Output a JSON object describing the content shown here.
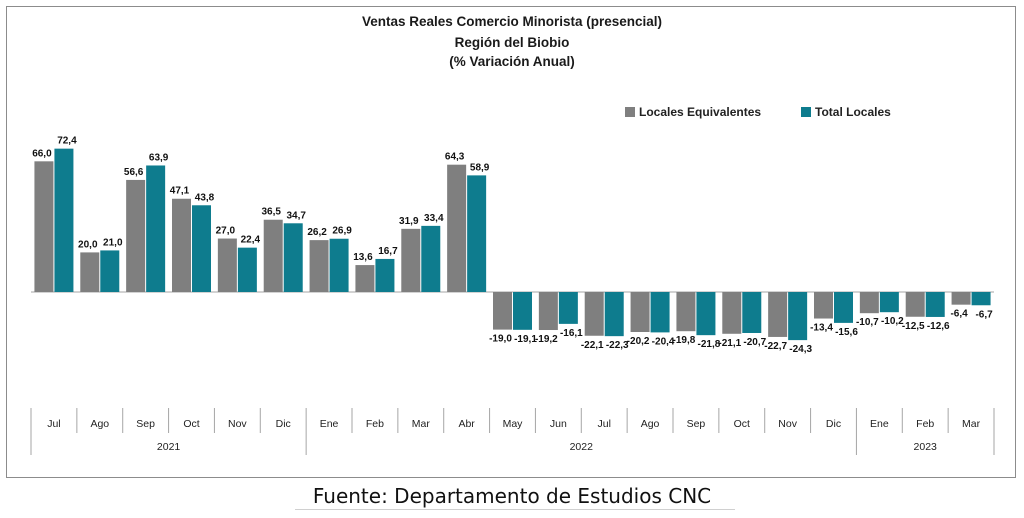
{
  "title_lines": [
    "Ventas Reales Comercio Minorista (presencial)",
    "Región del Biobio",
    "(% Variación Anual)"
  ],
  "source": "Fuente: Departamento de Estudios CNC",
  "colors": {
    "locales_equivalentes": "#7f7f7f",
    "total_locales": "#0e7c8e",
    "axis": "#a6a6a6"
  },
  "chart_data": {
    "type": "bar",
    "title": "Ventas Reales Comercio Minorista (presencial) Región del Biobio (% Variación Anual)",
    "categories": [
      "Jul",
      "Ago",
      "Sep",
      "Oct",
      "Nov",
      "Dic",
      "Ene",
      "Feb",
      "Mar",
      "Abr",
      "May",
      "Jun",
      "Jul",
      "Ago",
      "Sep",
      "Oct",
      "Nov",
      "Dic",
      "Ene",
      "Feb",
      "Mar"
    ],
    "year_groups": [
      {
        "label": "2021",
        "count": 6
      },
      {
        "label": "2022",
        "count": 12
      },
      {
        "label": "2023",
        "count": 3
      }
    ],
    "series": [
      {
        "name": "Locales Equivalentes",
        "values": [
          66.0,
          20.0,
          56.6,
          47.1,
          27.0,
          36.5,
          26.2,
          13.6,
          31.9,
          64.3,
          -19.0,
          -19.2,
          -22.1,
          -20.2,
          -19.8,
          -21.1,
          -22.7,
          -13.4,
          -10.7,
          -12.5,
          -6.4
        ],
        "labels": [
          "66,0",
          "20,0",
          "56,6",
          "47,1",
          "27,0",
          "36,5",
          "26,2",
          "13,6",
          "31,9",
          "64,3",
          "-19,0",
          "-19,2",
          "-22,1",
          "-20,2",
          "-19,8",
          "-21,1",
          "-22,7",
          "-13,4",
          "-10,7",
          "-12,5",
          "-6,4"
        ]
      },
      {
        "name": "Total Locales",
        "values": [
          72.4,
          21.0,
          63.9,
          43.8,
          22.4,
          34.7,
          26.9,
          16.7,
          33.4,
          58.9,
          -19.1,
          -16.1,
          -22.3,
          -20.4,
          -21.8,
          -20.7,
          -24.3,
          -15.6,
          -10.2,
          -12.6,
          -6.7
        ],
        "labels": [
          "72,4",
          "21,0",
          "63,9",
          "43,8",
          "22,4",
          "34,7",
          "26,9",
          "16,7",
          "33,4",
          "58,9",
          "-19,1",
          "-16,1",
          "-22,3",
          "-20,4",
          "-21,8",
          "-20,7",
          "-24,3",
          "-15,6",
          "-10,2",
          "-12,6",
          "-6,7"
        ]
      }
    ],
    "legend_position": "top-right",
    "grid": false
  }
}
